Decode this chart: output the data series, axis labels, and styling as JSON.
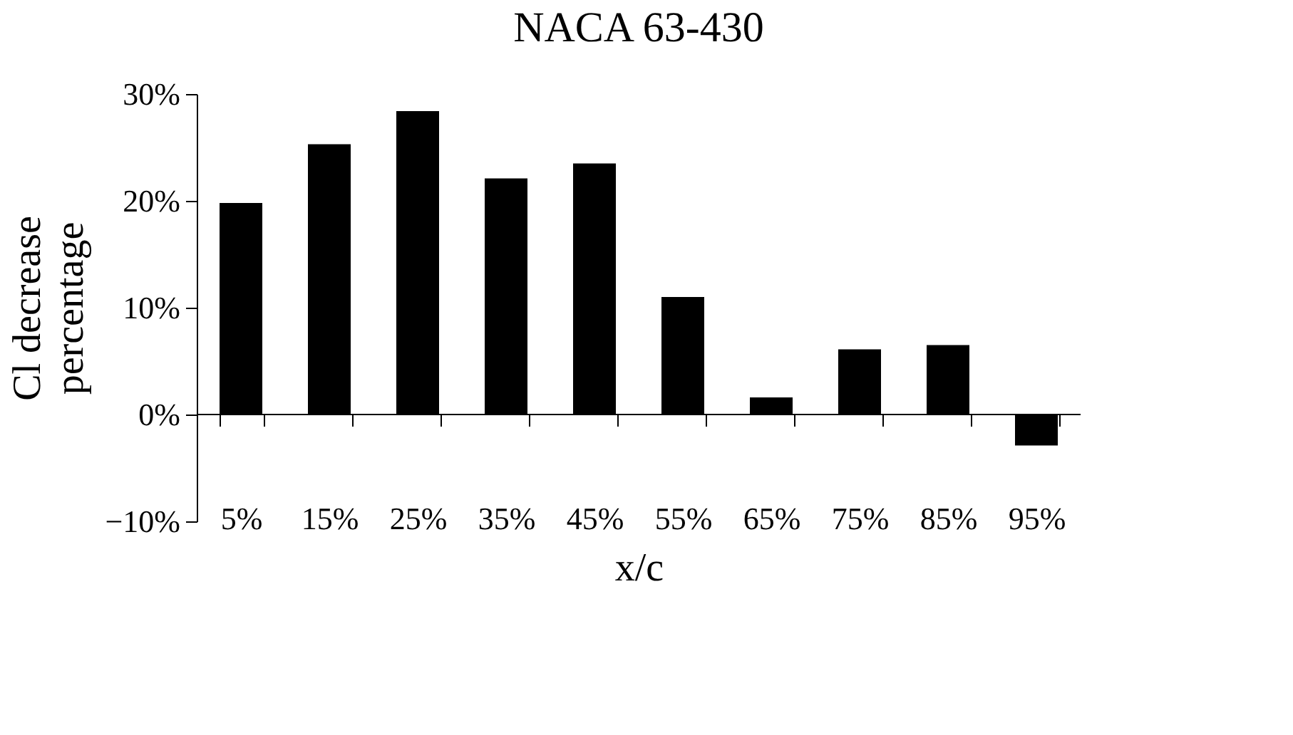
{
  "chart_data": {
    "type": "bar",
    "title": "NACA 63-430",
    "xlabel": "x/c",
    "ylabel": "Cl decrease\npercentage",
    "categories": [
      "5%",
      "15%",
      "25%",
      "35%",
      "45%",
      "55%",
      "65%",
      "75%",
      "85%",
      "95%"
    ],
    "values": [
      19.8,
      25.3,
      28.4,
      22.1,
      23.5,
      11.0,
      1.6,
      6.1,
      6.5,
      -2.9
    ],
    "color": "#000000",
    "ylim": [
      -10,
      30
    ],
    "yticks": [
      {
        "value": -10,
        "label": "−10%"
      },
      {
        "value": 0,
        "label": "0%"
      },
      {
        "value": 10,
        "label": "10%"
      },
      {
        "value": 20,
        "label": "20%"
      },
      {
        "value": 30,
        "label": "30%"
      }
    ],
    "ref_lines": [
      {
        "axis": "y",
        "value": 0,
        "color": "#000000"
      }
    ],
    "grid": false
  }
}
